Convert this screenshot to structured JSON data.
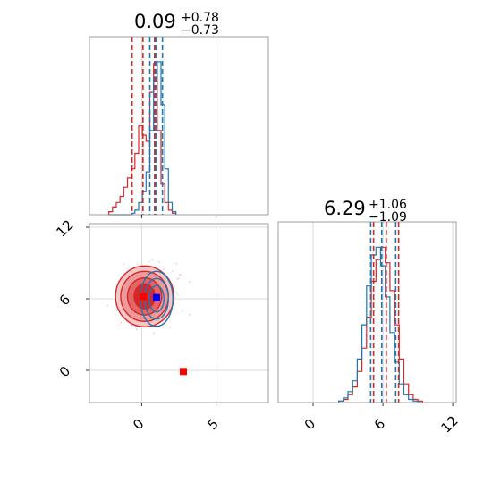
{
  "chart_data": {
    "type": "corner",
    "colors": {
      "red": "#d62728",
      "blue": "#1f77b4",
      "red_fill": "#e8898a",
      "red_dark": "#d62728"
    },
    "panels": [
      {
        "id": "marginal-x",
        "type": "histogram",
        "title": {
          "main": "0.09",
          "sup": "+0.78",
          "sub": "−0.73"
        },
        "xlim": [
          -3.5,
          8.5
        ],
        "xticks": [
          0,
          5
        ],
        "bin_edges": [
          -2.2,
          -1.95,
          -1.7,
          -1.45,
          -1.2,
          -0.95,
          -0.7,
          -0.45,
          -0.2,
          0.05,
          0.3,
          0.55,
          0.8,
          1.05,
          1.3,
          1.55,
          1.8,
          2.05,
          2.3
        ],
        "series": [
          {
            "color": "red",
            "counts": [
              0.02,
              0.05,
              0.08,
              0.12,
              0.18,
              0.24,
              0.3,
              0.4,
              0.58,
              0.52,
              0.48,
              0.8,
              0.99,
              0.55,
              0.2,
              0.08,
              0.03,
              0.01
            ]
          },
          {
            "color": "blue",
            "counts": [
              0,
              0,
              0,
              0,
              0,
              0,
              0.01,
              0.03,
              0.08,
              0.15,
              0.28,
              0.55,
              0.9,
              1.0,
              0.72,
              0.3,
              0.08,
              0.02
            ]
          }
        ],
        "quantile_lines": [
          {
            "color": "red",
            "values": [
              -0.64,
              0.09,
              0.87
            ]
          },
          {
            "color": "blue",
            "values": [
              0.55,
              0.95,
              1.4
            ]
          }
        ]
      },
      {
        "id": "joint",
        "type": "contour",
        "xlim": [
          -3.5,
          8.5
        ],
        "ylim": [
          -2.7,
          12.3
        ],
        "xticks": [
          0,
          5
        ],
        "xticklabels": [
          "0",
          "5"
        ],
        "yticks": [
          0,
          6,
          12
        ],
        "yticklabels": [
          "0",
          "6",
          "12"
        ],
        "red_contours": {
          "center": [
            0.2,
            6.2
          ],
          "radii": [
            [
              1.95,
              2.55
            ],
            [
              1.6,
              2.1
            ],
            [
              1.15,
              1.55
            ],
            [
              0.7,
              1.05
            ]
          ]
        },
        "blue_contours": {
          "center": [
            1.0,
            6.0
          ],
          "radii": [
            [
              1.1,
              2.3
            ],
            [
              0.8,
              1.7
            ],
            [
              0.5,
              1.1
            ]
          ]
        },
        "markers": [
          {
            "color": "red",
            "shape": "square",
            "x": 2.8,
            "y": -0.1
          },
          {
            "color": "blue",
            "shape": "square",
            "x": 1.0,
            "y": 6.1
          },
          {
            "color": "red",
            "shape": "square",
            "x": 0.1,
            "y": 6.2
          }
        ]
      },
      {
        "id": "marginal-y",
        "type": "histogram",
        "title": {
          "main": "6.29",
          "sup": "+1.06",
          "sub": "−1.09"
        },
        "xlim": [
          -3.0,
          12.3
        ],
        "xticks": [
          0,
          6,
          12
        ],
        "xticklabels": [
          "0",
          "6",
          "12"
        ],
        "bin_edges": [
          2.2,
          2.6,
          3.0,
          3.4,
          3.8,
          4.2,
          4.6,
          5.0,
          5.4,
          5.8,
          6.2,
          6.6,
          7.0,
          7.4,
          7.8,
          8.2,
          8.6,
          9.0,
          9.4
        ],
        "series": [
          {
            "color": "red",
            "counts": [
              0.01,
              0.02,
              0.05,
              0.1,
              0.2,
              0.35,
              0.55,
              0.78,
              0.92,
              1.0,
              0.9,
              0.72,
              0.5,
              0.28,
              0.12,
              0.05,
              0.02,
              0.01
            ]
          },
          {
            "color": "blue",
            "counts": [
              0.01,
              0.03,
              0.07,
              0.14,
              0.28,
              0.5,
              0.75,
              0.95,
              1.0,
              0.88,
              0.68,
              0.45,
              0.26,
              0.12,
              0.05,
              0.02,
              0.01,
              0.0
            ]
          }
        ],
        "quantile_lines": [
          {
            "color": "red",
            "values": [
              5.2,
              6.29,
              7.35
            ]
          },
          {
            "color": "blue",
            "values": [
              4.95,
              5.9,
              7.1
            ]
          }
        ]
      }
    ]
  }
}
